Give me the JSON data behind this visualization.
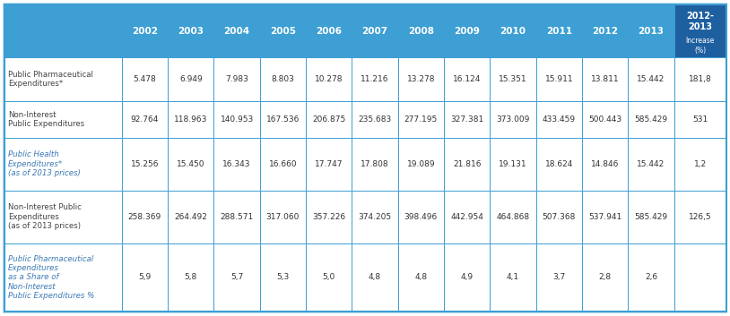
{
  "header_bg": "#3d9fd3",
  "header_text_color": "#ffffff",
  "last_header_bg": "#1e5fa0",
  "row_label_color_blue": "#3d7ab5",
  "row_label_color_dark": "#444444",
  "border_color": "#3d9fd3",
  "outer_bg": "#c5dff0",
  "bg_color": "#ffffff",
  "header_years": [
    "2002",
    "2003",
    "2004",
    "2005",
    "2006",
    "2007",
    "2008",
    "2009",
    "2010",
    "2011",
    "2012",
    "2013"
  ],
  "rows": [
    {
      "label": "Public Pharmaceutical\nExpenditures*",
      "label_italic": false,
      "label_bold": false,
      "values": [
        "5.478",
        "6.949",
        "7.983",
        "8.803",
        "10.278",
        "11.216",
        "13.278",
        "16.124",
        "15.351",
        "15.911",
        "13.811",
        "15.442"
      ],
      "increase": "181,8"
    },
    {
      "label": "Non-Interest\nPublic Expenditures",
      "label_italic": false,
      "label_bold": false,
      "values": [
        "92.764",
        "118.963",
        "140.953",
        "167.536",
        "206.875",
        "235.683",
        "277.195",
        "327.381",
        "373.009",
        "433.459",
        "500.443",
        "585.429"
      ],
      "increase": "531"
    },
    {
      "label": "Public Health\nExpenditures*\n(as of 2013 prices)",
      "label_italic": true,
      "label_bold": false,
      "values": [
        "15.256",
        "15.450",
        "16.343",
        "16.660",
        "17.747",
        "17.808",
        "19.089",
        "21.816",
        "19.131",
        "18.624",
        "14.846",
        "15.442"
      ],
      "increase": "1,2"
    },
    {
      "label": "Non-Interest Public\nExpenditures\n(as of 2013 prices)",
      "label_italic": false,
      "label_bold": false,
      "values": [
        "258.369",
        "264.492",
        "288.571",
        "317.060",
        "357.226",
        "374.205",
        "398.496",
        "442.954",
        "464.868",
        "507.368",
        "537.941",
        "585.429"
      ],
      "increase": "126,5"
    },
    {
      "label": "Public Pharmaceutical\nExpenditures\nas a Share of\nNon-Interest\nPublic Expenditures %",
      "label_italic": true,
      "label_bold": false,
      "values": [
        "5,9",
        "5,8",
        "5,7",
        "5,3",
        "5,0",
        "4,8",
        "4,8",
        "4,9",
        "4,1",
        "3,7",
        "2,8",
        "2,6"
      ],
      "increase": ""
    }
  ]
}
